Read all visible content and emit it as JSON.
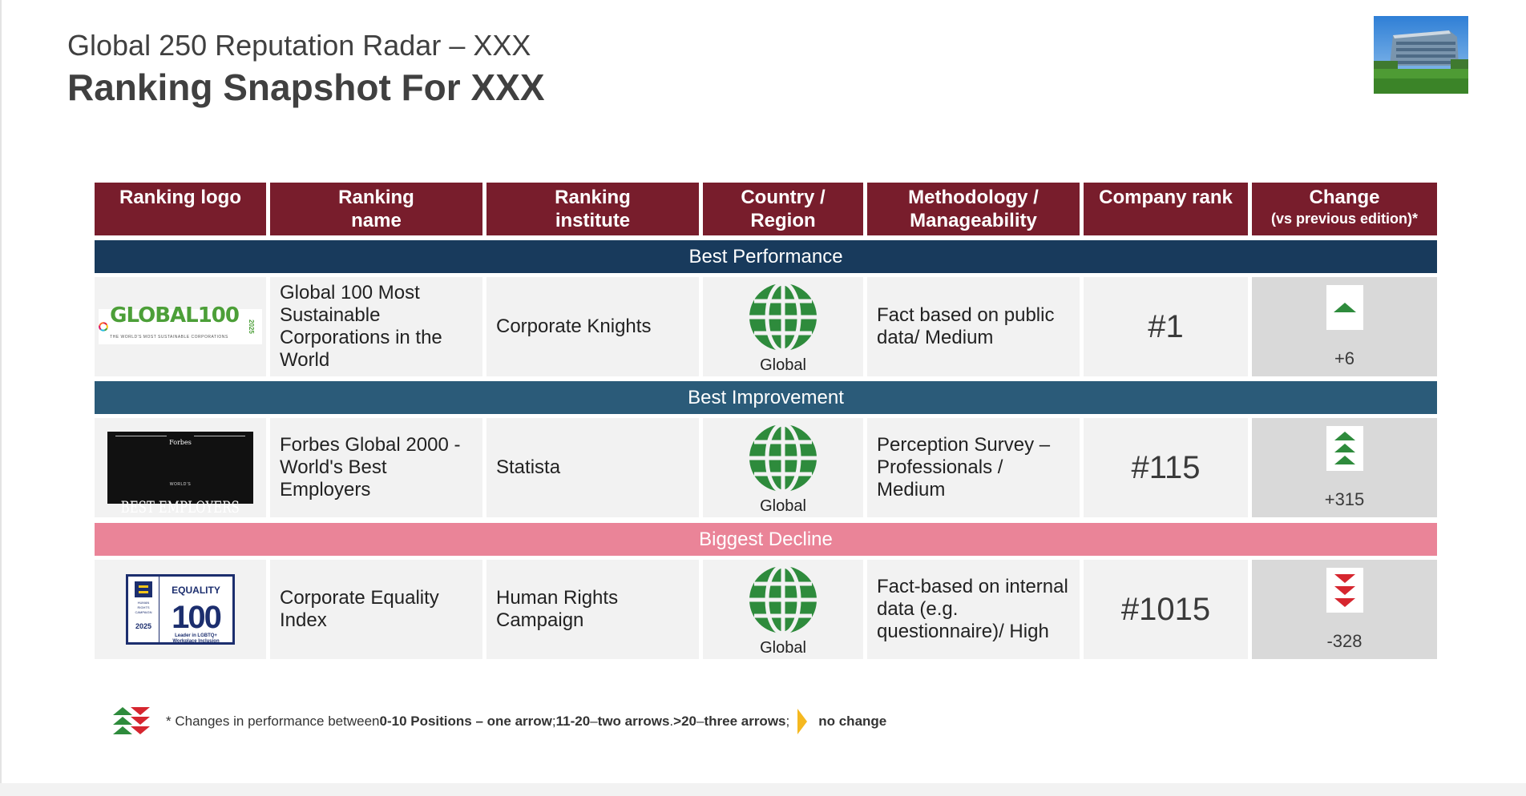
{
  "header": {
    "title_line1": "Global 250 Reputation Radar – XXX",
    "title_line2": "Ranking Snapshot For XXX"
  },
  "columns": [
    {
      "line1": "Ranking logo",
      "line2": ""
    },
    {
      "line1": "Ranking",
      "line2": "name"
    },
    {
      "line1": "Ranking",
      "line2": "institute"
    },
    {
      "line1": "Country /",
      "line2": "Region"
    },
    {
      "line1": "Methodology /",
      "line2": "Manageability"
    },
    {
      "line1": "Company rank",
      "line2": ""
    },
    {
      "line1": "Change",
      "line2": "(vs previous edition)*"
    }
  ],
  "sections": [
    {
      "band_label": "Best Performance",
      "band_color": "#183a5c",
      "logo_text": "GLOBAL100",
      "logo_year": "2025",
      "logo_tagline": "THE WORLD'S MOST SUSTAINABLE CORPORATIONS",
      "ranking_name": "Global 100 Most Sustainable Corporations in the World",
      "institute": "Corporate Knights",
      "region": "Global",
      "methodology": "Fact based on public data/ Medium",
      "rank": "#1",
      "change": "+6",
      "arrow_direction": "up",
      "arrow_count": 1
    },
    {
      "band_label": "Best Improvement",
      "band_color": "#2b5b79",
      "logo_top": "Forbes",
      "logo_small": "WORLD'S",
      "logo_text": "BEST EMPLOYERS",
      "ranking_name": "Forbes Global 2000 - World's Best Employers",
      "institute": "Statista",
      "region": "Global",
      "methodology": "Perception Survey – Professionals / Medium",
      "rank": "#115",
      "change": "+315",
      "arrow_direction": "up",
      "arrow_count": 3
    },
    {
      "band_label": "Biggest Decline",
      "band_color": "#ea8498",
      "logo_top": "EQUALITY",
      "logo_text": "100",
      "logo_left": "HUMAN RIGHTS CAMPAIGN",
      "logo_year": "2025",
      "logo_tagline": "Leader in LGBTQ+ Workplace Inclusion",
      "ranking_name": "Corporate Equality Index",
      "institute": "Human Rights Campaign",
      "region": "Global",
      "methodology": "Fact-based on internal data (e.g. questionnaire)/ High",
      "rank": "#1015",
      "change": "-328",
      "arrow_direction": "down",
      "arrow_count": 3
    }
  ],
  "footnote": {
    "t1": "* Changes in performance between ",
    "b1": "0-10 Positions – one arrow",
    "t2": "; ",
    "b2": "11-20",
    "t3": " – ",
    "b3": "two arrows",
    "t4": ". ",
    "b4": ">20",
    "t5": " – ",
    "b5": "three arrows",
    "t6": " ; ",
    "b6": "no change"
  },
  "colors": {
    "header_bg": "#781d2c",
    "arrow_up": "#2e8b3c",
    "arrow_down": "#d6262f",
    "no_change": "#f5b820",
    "globe": "#2e8b3c"
  }
}
